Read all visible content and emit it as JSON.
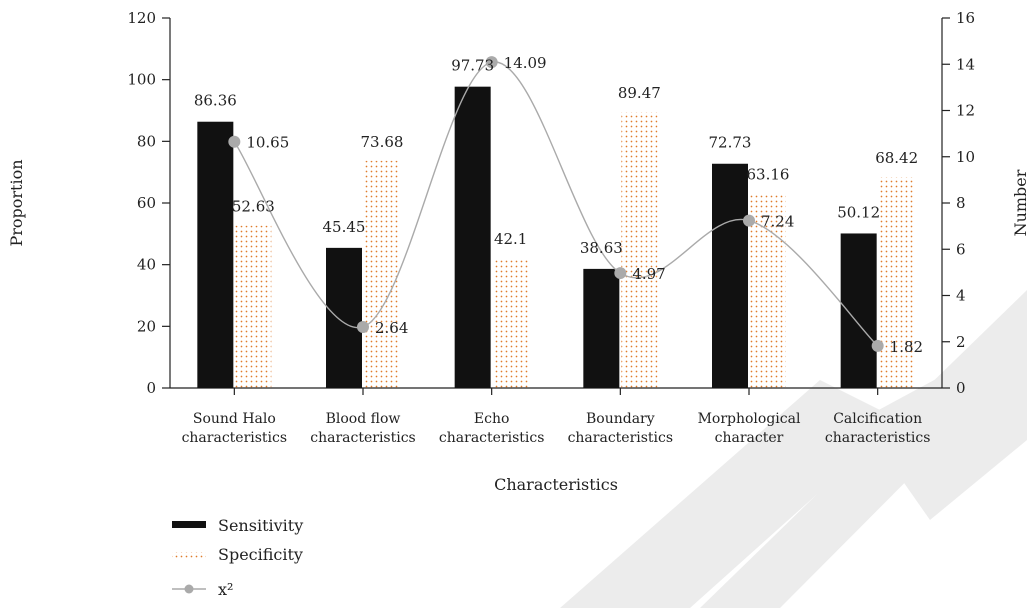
{
  "chart_data": {
    "type": "bar",
    "categories": [
      [
        "Sound Halo",
        "characteristics"
      ],
      [
        "Blood flow",
        "characteristics"
      ],
      [
        "Echo",
        "characteristics"
      ],
      [
        "Boundary",
        "characteristics"
      ],
      [
        "Morphological",
        "character"
      ],
      [
        "Calcification",
        "characteristics"
      ]
    ],
    "series": [
      {
        "name": "Sensitivity",
        "axis": "left",
        "kind": "bar",
        "color": "#111111",
        "values": [
          86.36,
          45.45,
          97.73,
          38.63,
          72.73,
          50.12
        ],
        "labels": [
          "86.36",
          "45.45",
          "97.73",
          "38.63",
          "72.73",
          "50.12"
        ]
      },
      {
        "name": "Specificity",
        "axis": "left",
        "kind": "bar",
        "pattern": "dots",
        "color": "#e07b2a",
        "values": [
          52.63,
          73.68,
          42.1,
          89.47,
          63.16,
          68.42
        ],
        "labels": [
          "52.63",
          "73.68",
          "42.1",
          "89.47",
          "63.16",
          "68.42"
        ]
      },
      {
        "name": "x²",
        "axis": "right",
        "kind": "line",
        "color": "#aaaaaa",
        "values": [
          10.65,
          2.64,
          14.09,
          4.97,
          7.24,
          1.82
        ],
        "labels": [
          "10.65",
          "2.64",
          "14.09",
          "4.97",
          "7.24",
          "1.82"
        ]
      }
    ],
    "xlabel": "Characteristics",
    "ylabel": "Proportion",
    "y2label": "Number",
    "ylim": [
      0,
      120
    ],
    "y2lim": [
      0,
      16
    ],
    "yticks": [
      0,
      20,
      40,
      60,
      80,
      100,
      120
    ],
    "y2ticks": [
      0,
      2,
      4,
      6,
      8,
      10,
      12,
      14,
      16
    ],
    "grid": false,
    "legend_position": "bottom-left"
  },
  "watermark": {
    "text": "CITE",
    "color": "#ebebeb"
  }
}
